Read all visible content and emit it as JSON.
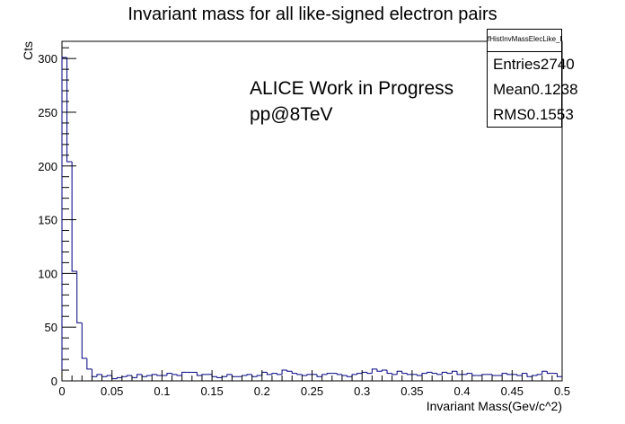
{
  "chart_data": {
    "type": "histogram",
    "title": "Invariant mass for all like-signed electron pairs",
    "xlabel": "Invariant Mass(Gev/c^2)",
    "ylabel": "Cts",
    "xlim": [
      0,
      0.5
    ],
    "ylim": [
      0,
      316
    ],
    "bin_width": 0.005,
    "xticks": [
      0,
      0.05,
      0.1,
      0.15,
      0.2,
      0.25,
      0.3,
      0.35,
      0.4,
      0.45,
      0.5
    ],
    "xtick_labels": [
      "0",
      "0.05",
      "0.1",
      "0.15",
      "0.2",
      "0.25",
      "0.3",
      "0.35",
      "0.4",
      "0.45",
      "0.5"
    ],
    "yticks": [
      0,
      50,
      100,
      150,
      200,
      250,
      300
    ],
    "ytick_labels": [
      "0",
      "50",
      "100",
      "150",
      "200",
      "250",
      "300"
    ],
    "grid": false,
    "line_color": "#000080",
    "values": [
      301,
      204,
      102,
      54,
      21,
      11,
      4,
      6,
      4,
      5,
      2,
      3,
      4,
      5,
      3,
      6,
      4,
      5,
      6,
      5,
      5,
      7,
      6,
      5,
      8,
      8,
      8,
      5,
      6,
      6,
      4,
      3,
      4,
      6,
      4,
      4,
      5,
      6,
      4,
      5,
      8,
      6,
      7,
      6,
      10,
      9,
      7,
      6,
      5,
      6,
      6,
      4,
      6,
      7,
      7,
      6,
      5,
      4,
      6,
      7,
      8,
      7,
      11,
      9,
      10,
      7,
      6,
      9,
      7,
      6,
      6,
      5,
      7,
      8,
      7,
      6,
      8,
      7,
      9,
      6,
      6,
      7,
      5,
      5,
      6,
      6,
      5,
      5,
      7,
      6,
      6,
      5,
      7,
      4,
      5,
      6,
      9,
      7,
      7,
      4
    ],
    "annotations": [
      "ALICE Work in Progress",
      "pp@8TeV"
    ],
    "stats": {
      "name": "fHistInvMassElecLike_EMCEGA",
      "entries_label": "Entries",
      "entries": "2740",
      "mean_label": "Mean",
      "mean": "0.1238",
      "rms_label": "RMS",
      "rms": "0.1553"
    }
  }
}
